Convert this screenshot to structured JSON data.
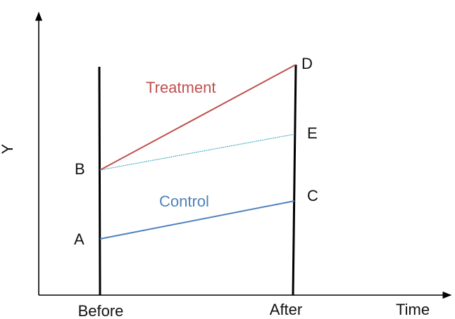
{
  "diagram": {
    "y_axis_label": "Y",
    "x_axis_label": "Time",
    "period_labels": {
      "before": "Before",
      "after": "After"
    },
    "points": {
      "A": "A",
      "B": "B",
      "C": "C",
      "D": "D",
      "E": "E"
    },
    "series": {
      "treatment": {
        "label": "Treatment",
        "color": "#c0504d"
      },
      "control": {
        "label": "Control",
        "color": "#4f81bd"
      },
      "counterfactual": {
        "color": "#4bacc6"
      }
    },
    "axis_color": "#000000"
  }
}
